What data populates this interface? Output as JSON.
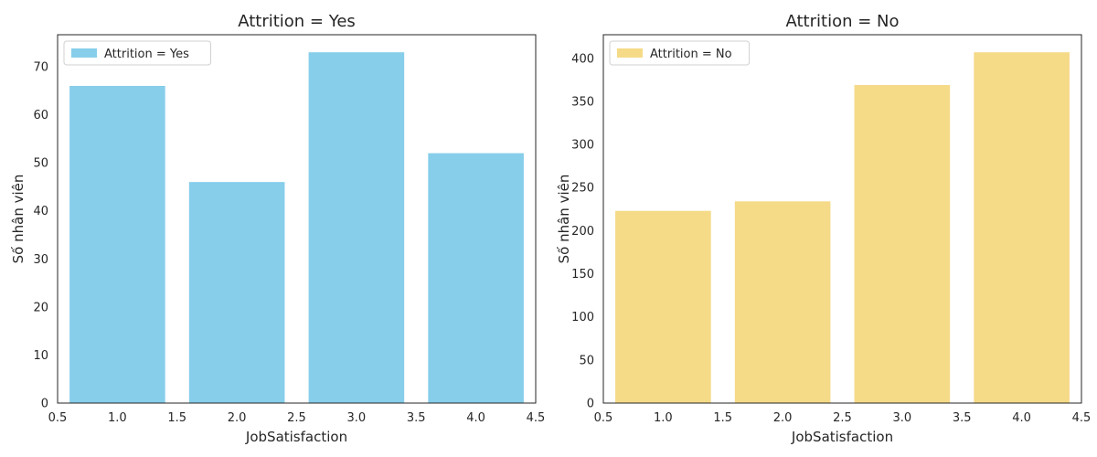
{
  "chart_data": [
    {
      "type": "bar",
      "title": "Attrition = Yes",
      "xlabel": "JobSatisfaction",
      "ylabel": "Số nhân viên",
      "x": [
        1,
        2,
        3,
        4
      ],
      "values": [
        66,
        46,
        73,
        52
      ],
      "bar_width": 0.8,
      "xlim": [
        0.5,
        4.5
      ],
      "ylim": [
        0,
        76.65
      ],
      "xticks": [
        "0.5",
        "1.0",
        "1.5",
        "2.0",
        "2.5",
        "3.0",
        "3.5",
        "4.0",
        "4.5"
      ],
      "yticks": [
        "0",
        "10",
        "20",
        "30",
        "40",
        "50",
        "60",
        "70"
      ],
      "legend": {
        "label": "Attrition = Yes",
        "placement": "top-left"
      },
      "color": "#87CEEB",
      "grid": false
    },
    {
      "type": "bar",
      "title": "Attrition = No",
      "xlabel": "JobSatisfaction",
      "ylabel": "Số nhân viên",
      "x": [
        1,
        2,
        3,
        4
      ],
      "values": [
        223,
        234,
        369,
        407
      ],
      "bar_width": 0.8,
      "xlim": [
        0.5,
        4.5
      ],
      "ylim": [
        0,
        427.35
      ],
      "xticks": [
        "0.5",
        "1.0",
        "1.5",
        "2.0",
        "2.5",
        "3.0",
        "3.5",
        "4.0",
        "4.5"
      ],
      "yticks": [
        "0",
        "50",
        "100",
        "150",
        "200",
        "250",
        "300",
        "350",
        "400"
      ],
      "legend": {
        "label": "Attrition = No",
        "placement": "top-left"
      },
      "color": "#F5DA87",
      "grid": false
    }
  ]
}
